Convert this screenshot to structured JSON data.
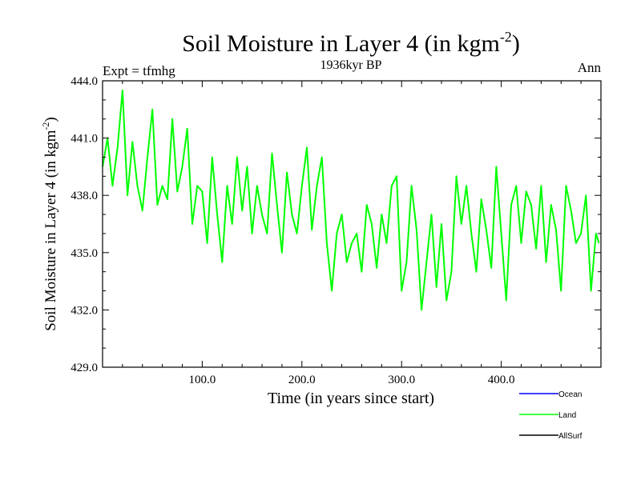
{
  "chart_data": {
    "type": "line",
    "title": "Soil Moisture in Layer 4 (in kgm",
    "title_sup": "-2",
    "title_close": ")",
    "subtitle": "1936kyr BP",
    "left_label": "Expt = tfmhg",
    "right_label": "Ann",
    "xlabel": "Time (in years since start)",
    "ylabel": "Soil Moisture in Layer 4 (in kgm",
    "ylabel_sup": "-2",
    "ylabel_close": ")",
    "xlim": [
      0,
      500
    ],
    "ylim": [
      429.0,
      444.0
    ],
    "x_ticks": [
      {
        "value": 100,
        "label": "100.0"
      },
      {
        "value": 200,
        "label": "200.0"
      },
      {
        "value": 300,
        "label": "300.0"
      },
      {
        "value": 400,
        "label": "400.0"
      }
    ],
    "y_ticks": [
      {
        "value": 429,
        "label": "429.0"
      },
      {
        "value": 432,
        "label": "432.0"
      },
      {
        "value": 435,
        "label": "435.0"
      },
      {
        "value": 438,
        "label": "438.0"
      },
      {
        "value": 441,
        "label": "441.0"
      },
      {
        "value": 444,
        "label": "444.0"
      }
    ],
    "legend": [
      {
        "name": "Ocean",
        "color": "#0000ff"
      },
      {
        "name": "Land",
        "color": "#00ff00"
      },
      {
        "name": "AllSurf",
        "color": "#000000"
      }
    ],
    "series": [
      {
        "name": "Land",
        "color": "#00ff00",
        "x": [
          0,
          5,
          10,
          15,
          20,
          25,
          30,
          35,
          40,
          45,
          50,
          55,
          60,
          65,
          70,
          75,
          80,
          85,
          90,
          95,
          100,
          105,
          110,
          115,
          120,
          125,
          130,
          135,
          140,
          145,
          150,
          155,
          160,
          165,
          170,
          175,
          180,
          185,
          190,
          195,
          200,
          205,
          210,
          215,
          220,
          225,
          230,
          235,
          240,
          245,
          250,
          255,
          260,
          265,
          270,
          275,
          280,
          285,
          290,
          295,
          300,
          305,
          310,
          315,
          320,
          325,
          330,
          335,
          340,
          345,
          350,
          355,
          360,
          365,
          370,
          375,
          380,
          385,
          390,
          395,
          400,
          405,
          410,
          415,
          420,
          425,
          430,
          435,
          440,
          445,
          450,
          455,
          460,
          465,
          470,
          475,
          480,
          485,
          490,
          495,
          498
        ],
        "values": [
          439.5,
          441.0,
          438.5,
          440.5,
          443.5,
          438.0,
          440.8,
          438.5,
          437.2,
          440.0,
          442.5,
          437.5,
          438.5,
          437.8,
          442.0,
          438.2,
          439.5,
          441.5,
          436.5,
          438.5,
          438.2,
          435.5,
          440.0,
          437.0,
          434.5,
          438.5,
          436.5,
          440.0,
          437.2,
          439.5,
          436.0,
          438.5,
          437.0,
          436.0,
          440.2,
          437.5,
          435.0,
          439.2,
          437.0,
          436.0,
          438.5,
          440.5,
          436.2,
          438.5,
          440.0,
          435.5,
          433.0,
          436.0,
          437.0,
          434.5,
          435.5,
          436.0,
          434.0,
          437.5,
          436.5,
          434.2,
          437.0,
          435.5,
          438.5,
          439.0,
          433.0,
          434.5,
          438.5,
          436.2,
          432.0,
          434.5,
          437.0,
          433.2,
          436.5,
          432.5,
          434.0,
          439.0,
          436.5,
          438.5,
          436.0,
          434.0,
          437.8,
          436.2,
          434.2,
          439.5,
          436.0,
          432.5,
          437.5,
          438.5,
          435.5,
          438.2,
          437.5,
          435.2,
          438.5,
          434.5,
          437.5,
          436.2,
          433.0,
          438.5,
          437.2,
          435.5,
          436.0,
          438.0,
          433.0,
          436.0,
          435.5
        ]
      }
    ]
  }
}
